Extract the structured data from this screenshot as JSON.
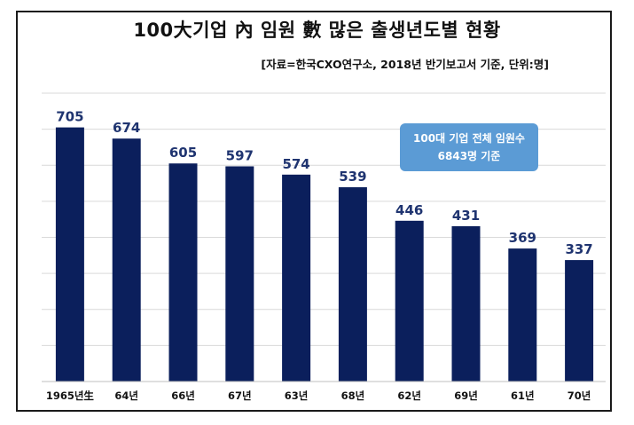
{
  "chart_data": {
    "type": "bar",
    "title": "100大기업 內 임원 數 많은 출생년도별 현황",
    "subtitle": "[자료=한국CXO연구소, 2018년 반기보고서 기준, 단위:명]",
    "note": [
      "100대 기업 전체 임원수",
      "6843명 기준"
    ],
    "categories": [
      "1965년生",
      "64년",
      "66년",
      "67년",
      "63년",
      "68년",
      "62년",
      "69년",
      "61년",
      "70년"
    ],
    "values": [
      705,
      674,
      605,
      597,
      574,
      539,
      446,
      431,
      369,
      337
    ],
    "ylim": [
      0,
      800
    ],
    "grid": true,
    "colors": {
      "bar": "#0b1f5c",
      "label": "#1f3470",
      "grid": "#d9d9d9"
    }
  }
}
